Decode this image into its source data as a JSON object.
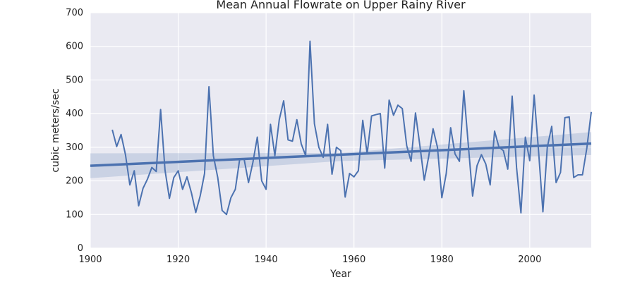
{
  "chart_data": {
    "type": "line",
    "title": "Mean Annual Flowrate on Upper Rainy River",
    "xlabel": "Year",
    "ylabel": "cubic meters/sec",
    "xlim": [
      1900,
      2014
    ],
    "ylim": [
      0,
      700
    ],
    "x_ticks": [
      1900,
      1920,
      1940,
      1960,
      1980,
      2000
    ],
    "y_ticks": [
      0,
      100,
      200,
      300,
      400,
      500,
      600,
      700
    ],
    "grid": true,
    "colors": {
      "line": "#4c72b0",
      "band": "#4c72b0",
      "background": "#eaeaf2",
      "grid": "#ffffff"
    },
    "series": [
      {
        "x": [
          1905,
          1906,
          1907,
          1908,
          1909,
          1910,
          1911,
          1912,
          1913,
          1914,
          1915,
          1916,
          1917,
          1918,
          1919,
          1920,
          1921,
          1922,
          1923,
          1924,
          1925,
          1926,
          1927,
          1928,
          1929,
          1930,
          1931,
          1932,
          1933,
          1934,
          1935,
          1936,
          1937,
          1938,
          1939,
          1940,
          1941,
          1942,
          1943,
          1944,
          1945,
          1946,
          1947,
          1948,
          1949,
          1950,
          1951,
          1952,
          1953,
          1954,
          1955,
          1956,
          1957,
          1958,
          1959,
          1960,
          1961,
          1962,
          1963,
          1964,
          1965,
          1966,
          1967,
          1968,
          1969,
          1970,
          1971,
          1972,
          1973,
          1974,
          1975,
          1976,
          1977,
          1978,
          1979,
          1980,
          1981,
          1982,
          1983,
          1984,
          1985,
          1986,
          1987,
          1988,
          1989,
          1990,
          1991,
          1992,
          1993,
          1994,
          1995,
          1996,
          1997,
          1998,
          1999,
          2000,
          2001,
          2002,
          2003,
          2004,
          2005,
          2006,
          2007,
          2008,
          2009,
          2010,
          2011,
          2012,
          2013,
          2014
        ],
        "values": [
          352,
          302,
          338,
          278,
          188,
          230,
          126,
          178,
          205,
          240,
          228,
          412,
          232,
          148,
          210,
          230,
          175,
          212,
          165,
          106,
          155,
          222,
          480,
          275,
          210,
          112,
          100,
          150,
          175,
          265,
          265,
          195,
          255,
          330,
          200,
          175,
          368,
          275,
          382,
          438,
          322,
          318,
          382,
          310,
          275,
          615,
          370,
          300,
          270,
          368,
          220,
          300,
          290,
          152,
          222,
          212,
          230,
          380,
          280,
          393,
          397,
          400,
          238,
          440,
          395,
          425,
          415,
          305,
          258,
          402,
          305,
          202,
          272,
          355,
          300,
          150,
          222,
          358,
          280,
          258,
          468,
          310,
          155,
          245,
          278,
          250,
          188,
          348,
          300,
          290,
          235,
          452,
          240,
          105,
          330,
          260,
          455,
          290,
          108,
          300,
          362,
          195,
          225,
          388,
          390,
          210,
          218,
          218,
          298,
          405
        ]
      }
    ],
    "regression": {
      "start": [
        1900,
        245
      ],
      "end": [
        2014,
        311
      ]
    },
    "confidence_band": {
      "upper": [
        [
          1900,
          282
        ],
        [
          1957,
          283
        ],
        [
          2014,
          345
        ]
      ],
      "lower": [
        [
          1900,
          208
        ],
        [
          1957,
          259
        ],
        [
          2014,
          277
        ]
      ]
    }
  }
}
